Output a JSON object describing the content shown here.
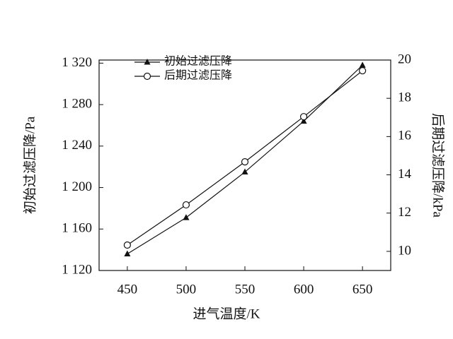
{
  "chart_data": {
    "type": "line",
    "x_label": "进气温度/K",
    "y_label": "初始过滤压降/Pa",
    "y2_label": "后期过滤压降/kPa",
    "x": [
      450,
      500,
      550,
      600,
      650
    ],
    "xlim": [
      426,
      674
    ],
    "xticks": [
      450,
      500,
      550,
      600,
      650
    ],
    "ylim": [
      1120,
      1323
    ],
    "yticks": [
      {
        "value": 1120,
        "label": "1 120"
      },
      {
        "value": 1160,
        "label": "1 160"
      },
      {
        "value": 1200,
        "label": "1 200"
      },
      {
        "value": 1240,
        "label": "1 240"
      },
      {
        "value": 1280,
        "label": "1 280"
      },
      {
        "value": 1320,
        "label": "1 320"
      }
    ],
    "y2lim": [
      9,
      20
    ],
    "y2ticks": [
      10,
      12,
      14,
      16,
      18,
      20
    ],
    "legend": "upper left",
    "series": [
      {
        "name": "初始过滤压降",
        "color": "#111111",
        "marker": "triangle",
        "values": [
          1136,
          1171,
          1215,
          1264,
          1318
        ]
      },
      {
        "name": "后期过滤压降",
        "color": "#111111",
        "marker": "circle",
        "axis": "y2",
        "values": [
          10.33,
          12.43,
          14.68,
          17.04,
          19.44
        ]
      }
    ]
  }
}
